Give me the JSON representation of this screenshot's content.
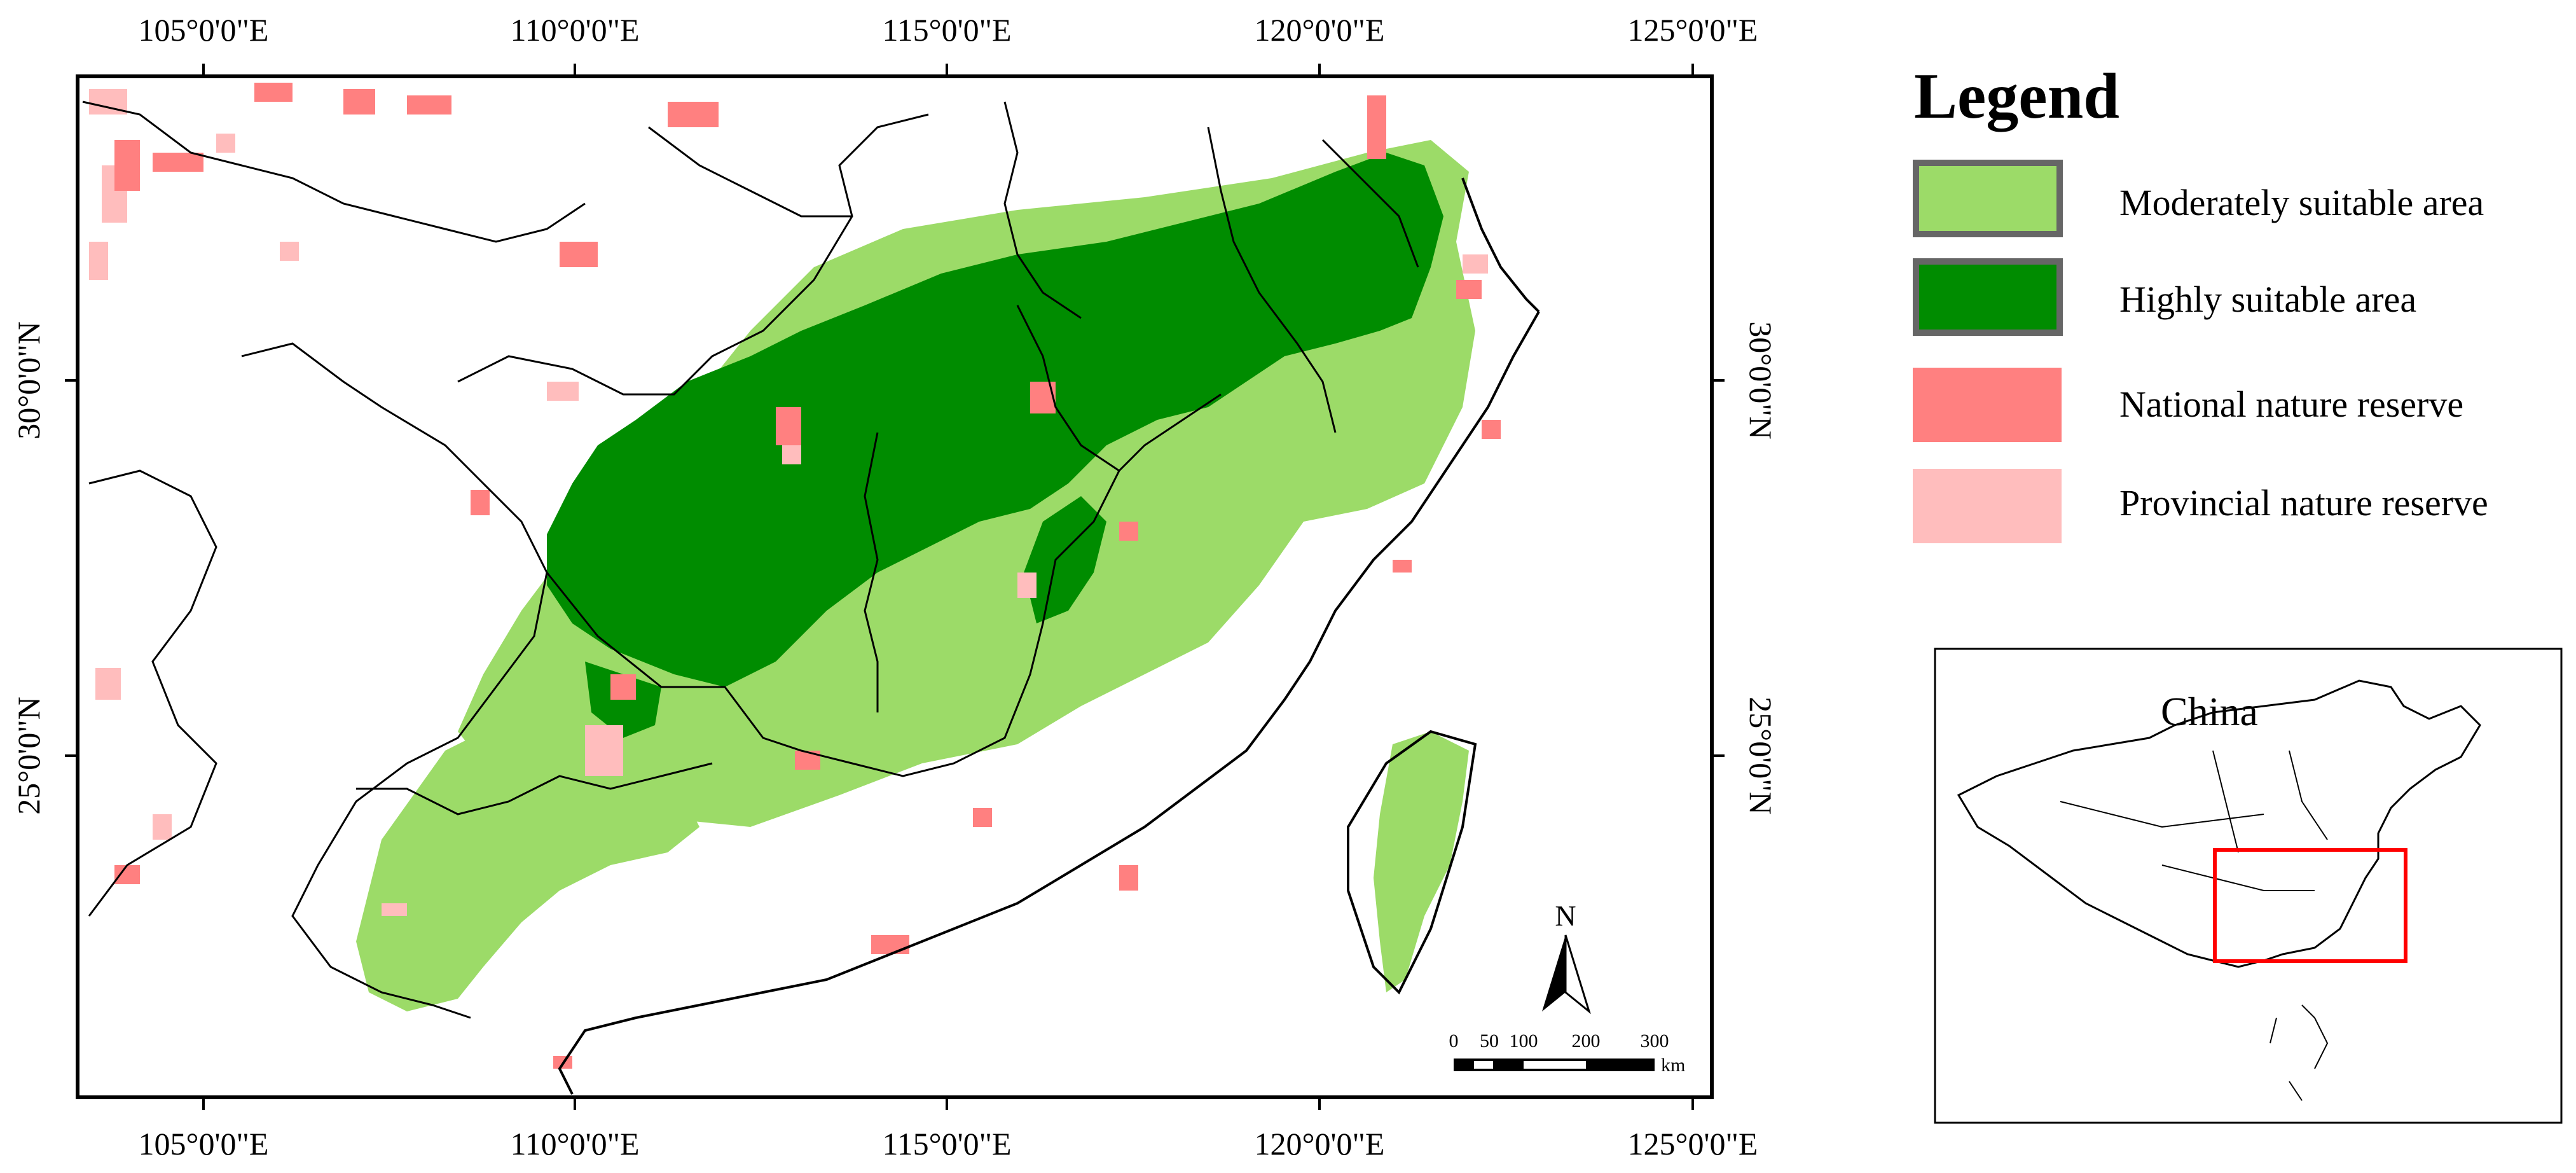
{
  "map": {
    "longitude_labels": [
      "105°0'0\"E",
      "110°0'0\"E",
      "115°0'0\"E",
      "120°0'0\"E",
      "125°0'0\"E"
    ],
    "latitude_labels": [
      "30°0'0\"N",
      "25°0'0\"N"
    ],
    "colors": {
      "moderately_suitable": "#9cdb68",
      "highly_suitable": "#008c00",
      "national_reserve": "#ff8080",
      "provincial_reserve": "#ffbdbd",
      "boundary": "#000000",
      "inset_extent": "#ff0000"
    },
    "scale_bar": {
      "ticks": [
        "0",
        "50",
        "100",
        "200",
        "300"
      ],
      "unit": "km"
    },
    "north_arrow": {
      "label": "N"
    }
  },
  "legend": {
    "title": "Legend",
    "items": [
      {
        "label": "Moderately suitable area",
        "color": "#9cdb68"
      },
      {
        "label": "Highly suitable area",
        "color": "#008c00"
      },
      {
        "label": "National nature reserve",
        "color": "#ff8080"
      },
      {
        "label": "Provincial nature reserve",
        "color": "#ffbdbd"
      }
    ]
  },
  "inset": {
    "title": "China"
  }
}
